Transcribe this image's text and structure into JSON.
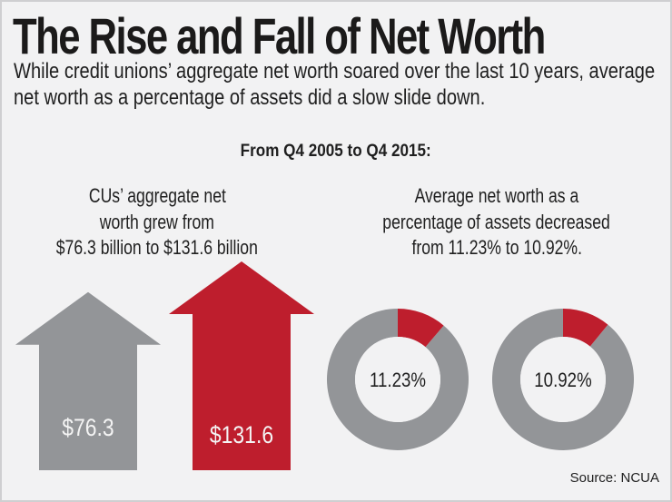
{
  "header": {
    "title": "The Rise and Fall of Net Worth",
    "subtitle": "While credit unions’ aggregate net worth soared over the last 10 years, average net worth as a percentage of assets did a slow slide down."
  },
  "range_heading": "From Q4 2005 to Q4 2015:",
  "captions": {
    "left": [
      "CUs’ aggregate net",
      "worth grew from",
      "$76.3 billion to $131.6 billion"
    ],
    "right": [
      "Average net worth as a",
      "percentage of assets decreased",
      "from 11.23% to 10.92%."
    ]
  },
  "colors": {
    "gray": "#939598",
    "red": "#be1e2d",
    "background": "#f2f2f3",
    "text": "#1f1f1f",
    "inner": "#f2f2f3"
  },
  "source": "Source: NCUA",
  "chart_data": [
    {
      "type": "bar",
      "title": "CUs’ aggregate net worth ($ billion)",
      "categories": [
        "Q4 2005",
        "Q4 2015"
      ],
      "values": [
        76.3,
        131.6
      ],
      "labels": [
        "$76.3",
        "$131.6"
      ],
      "colors": [
        "#939598",
        "#be1e2d"
      ],
      "shape": "up-arrow"
    },
    {
      "type": "pie",
      "title": "Average net worth as a percentage of assets",
      "slices": [
        {
          "name": "Q4 2005",
          "value": 11.23,
          "label": "11.23%"
        },
        {
          "name": "Q4 2015",
          "value": 10.92,
          "label": "10.92%"
        }
      ],
      "highlight_color": "#be1e2d",
      "remainder_color": "#939598",
      "style": "donut"
    }
  ]
}
